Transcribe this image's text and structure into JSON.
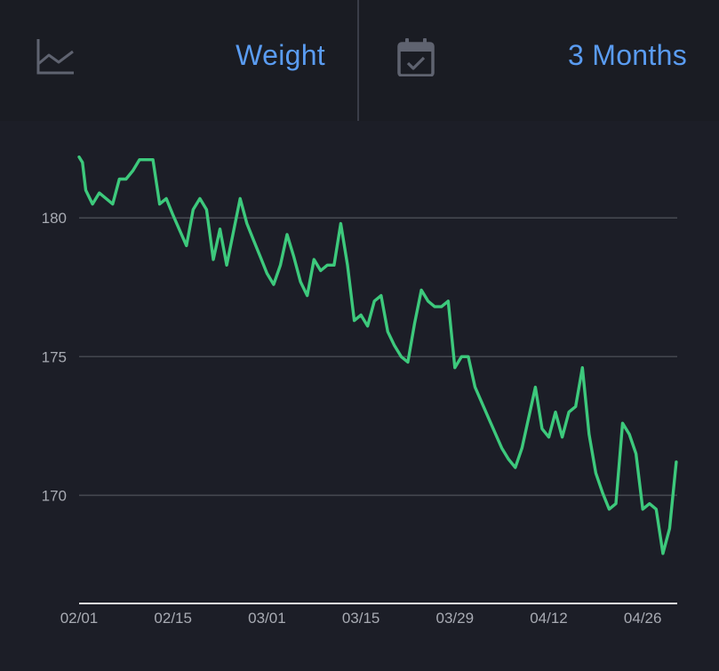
{
  "header": {
    "metric": {
      "label": "Weight",
      "icon": "line-chart-icon"
    },
    "range": {
      "label": "3 Months",
      "icon": "calendar-check-icon"
    }
  },
  "colors": {
    "background": "#1c1e27",
    "header_background": "#1a1c23",
    "accent": "#5a9cf2",
    "line": "#3dc97c",
    "grid": "#44474f",
    "axis_text": "#a8abb3"
  },
  "chart_data": {
    "type": "line",
    "title": "",
    "xlabel": "",
    "ylabel": "",
    "ylim": [
      166.1,
      183.5
    ],
    "yticks": [
      170,
      175,
      180
    ],
    "xticks": [
      "02/01",
      "02/15",
      "03/01",
      "03/15",
      "03/29",
      "04/12",
      "04/26"
    ],
    "grid": true,
    "x_start": "02/01",
    "series": [
      {
        "name": "",
        "values": [
          [
            0,
            182.2
          ],
          [
            0.5,
            182.0
          ],
          [
            1,
            181.0
          ],
          [
            2,
            180.5
          ],
          [
            3,
            180.9
          ],
          [
            5,
            180.5
          ],
          [
            6,
            181.4
          ],
          [
            7,
            181.4
          ],
          [
            8,
            181.7
          ],
          [
            9,
            182.1
          ],
          [
            10,
            182.1
          ],
          [
            11,
            182.1
          ],
          [
            12,
            180.5
          ],
          [
            13,
            180.7
          ],
          [
            14,
            180.1
          ],
          [
            16,
            179.0
          ],
          [
            17,
            180.3
          ],
          [
            18,
            180.7
          ],
          [
            19,
            180.3
          ],
          [
            20,
            178.5
          ],
          [
            21,
            179.6
          ],
          [
            22,
            178.3
          ],
          [
            24,
            180.7
          ],
          [
            25,
            179.8
          ],
          [
            26,
            179.2
          ],
          [
            27,
            178.6
          ],
          [
            28,
            178.0
          ],
          [
            29,
            177.6
          ],
          [
            30,
            178.3
          ],
          [
            31,
            179.4
          ],
          [
            32,
            178.6
          ],
          [
            33,
            177.7
          ],
          [
            34,
            177.2
          ],
          [
            35,
            178.5
          ],
          [
            36,
            178.1
          ],
          [
            37,
            178.3
          ],
          [
            38,
            178.3
          ],
          [
            39,
            179.8
          ],
          [
            40,
            178.3
          ],
          [
            41,
            176.3
          ],
          [
            42,
            176.5
          ],
          [
            43,
            176.1
          ],
          [
            44,
            177.0
          ],
          [
            45,
            177.2
          ],
          [
            46,
            175.9
          ],
          [
            47,
            175.4
          ],
          [
            48,
            175.0
          ],
          [
            49,
            174.8
          ],
          [
            50,
            176.2
          ],
          [
            51,
            177.4
          ],
          [
            52,
            177.0
          ],
          [
            53,
            176.8
          ],
          [
            54,
            176.8
          ],
          [
            55,
            177.0
          ],
          [
            56,
            174.6
          ],
          [
            57,
            175.0
          ],
          [
            58,
            175.0
          ],
          [
            59,
            173.9
          ],
          [
            61,
            172.8
          ],
          [
            63,
            171.7
          ],
          [
            64,
            171.3
          ],
          [
            65,
            171.0
          ],
          [
            66,
            171.7
          ],
          [
            68,
            173.9
          ],
          [
            69,
            172.4
          ],
          [
            70,
            172.1
          ],
          [
            71,
            173.0
          ],
          [
            72,
            172.1
          ],
          [
            73,
            173.0
          ],
          [
            74,
            173.2
          ],
          [
            75,
            174.6
          ],
          [
            76,
            172.2
          ],
          [
            77,
            170.8
          ],
          [
            78,
            170.1
          ],
          [
            79,
            169.5
          ],
          [
            80,
            169.7
          ],
          [
            81,
            172.6
          ],
          [
            82,
            172.2
          ],
          [
            83,
            171.5
          ],
          [
            84,
            169.5
          ],
          [
            85,
            169.7
          ],
          [
            86,
            169.5
          ],
          [
            87,
            167.9
          ],
          [
            88,
            168.8
          ],
          [
            89,
            171.2
          ]
        ]
      }
    ]
  }
}
